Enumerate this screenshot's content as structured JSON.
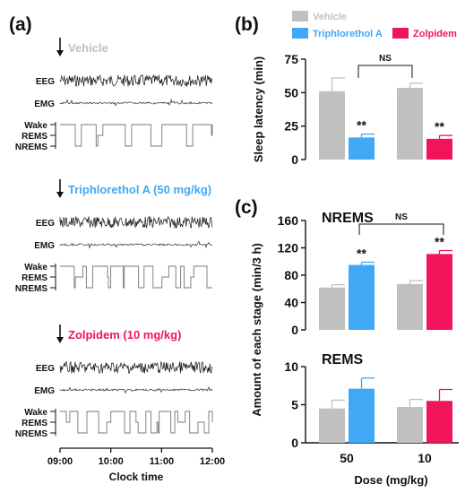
{
  "panels": {
    "a": "(a)",
    "b": "(b)",
    "c": "(c)"
  },
  "colors": {
    "vehicle": "#c0c0c0",
    "triphlorethol": "#3fa9f5",
    "zolpidem": "#f0155a",
    "trace": "#111111",
    "hypnogram": "#777777"
  },
  "panel_a": {
    "conditions": [
      {
        "label": "Vehicle",
        "color_key": "vehicle"
      },
      {
        "label": "Triphlorethol A (50 mg/kg)",
        "color_key": "triphlorethol"
      },
      {
        "label": "Zolpidem (10 mg/kg)",
        "color_key": "zolpidem"
      }
    ],
    "eeg_label": "EEG",
    "emg_label": "EMG",
    "stage_labels": [
      "Wake",
      "REMS",
      "NREMS"
    ],
    "time_ticks": [
      "09:00",
      "10:00",
      "11:00",
      "12:00"
    ],
    "xlabel": "Clock time"
  },
  "chart_data": [
    {
      "id": "b",
      "type": "bar",
      "ylabel": "Sleep latency (min)",
      "ylim": [
        0,
        75
      ],
      "yticks": [
        0,
        25,
        50,
        75
      ],
      "legend": [
        "Vehicle",
        "Triphlorethol A",
        "Zolpidem"
      ],
      "groups": [
        {
          "bars": [
            {
              "series": "Vehicle",
              "value": 51,
              "err": 10,
              "color_key": "vehicle"
            },
            {
              "series": "Triphlorethol A",
              "value": 16.5,
              "err": 2.5,
              "color_key": "triphlorethol",
              "mark": "**"
            }
          ]
        },
        {
          "bars": [
            {
              "series": "Vehicle",
              "value": 53.5,
              "err": 3.5,
              "color_key": "vehicle"
            },
            {
              "series": "Zolpidem",
              "value": 15.5,
              "err": 2.5,
              "color_key": "zolpidem",
              "mark": "**"
            }
          ]
        }
      ],
      "comparison": "NS"
    },
    {
      "id": "c-nrems",
      "type": "bar",
      "title": "NREMS",
      "ylim": [
        0,
        160
      ],
      "yticks": [
        0,
        40,
        80,
        120,
        160
      ],
      "groups": [
        {
          "bars": [
            {
              "series": "Vehicle",
              "value": 62,
              "err": 4,
              "color_key": "vehicle"
            },
            {
              "series": "Triphlorethol A",
              "value": 95,
              "err": 4,
              "color_key": "triphlorethol",
              "mark": "**"
            }
          ]
        },
        {
          "bars": [
            {
              "series": "Vehicle",
              "value": 67,
              "err": 5,
              "color_key": "vehicle"
            },
            {
              "series": "Zolpidem",
              "value": 111,
              "err": 5,
              "color_key": "zolpidem",
              "mark": "**"
            }
          ]
        }
      ],
      "comparison": "NS"
    },
    {
      "id": "c-rems",
      "type": "bar",
      "title": "REMS",
      "ylim": [
        0,
        10
      ],
      "yticks": [
        0,
        5,
        10
      ],
      "groups": [
        {
          "bars": [
            {
              "series": "Vehicle",
              "value": 4.5,
              "err": 1.1,
              "color_key": "vehicle"
            },
            {
              "series": "Triphlorethol A",
              "value": 7.1,
              "err": 1.4,
              "color_key": "triphlorethol"
            }
          ]
        },
        {
          "bars": [
            {
              "series": "Vehicle",
              "value": 4.7,
              "err": 1.0,
              "color_key": "vehicle"
            },
            {
              "series": "Zolpidem",
              "value": 5.5,
              "err": 1.5,
              "color_key": "zolpidem"
            }
          ]
        }
      ],
      "categories": [
        "50",
        "10"
      ],
      "xlabel": "Dose (mg/kg)"
    }
  ],
  "panel_c_ylabel": "Amount of each stage (min/3 h)"
}
